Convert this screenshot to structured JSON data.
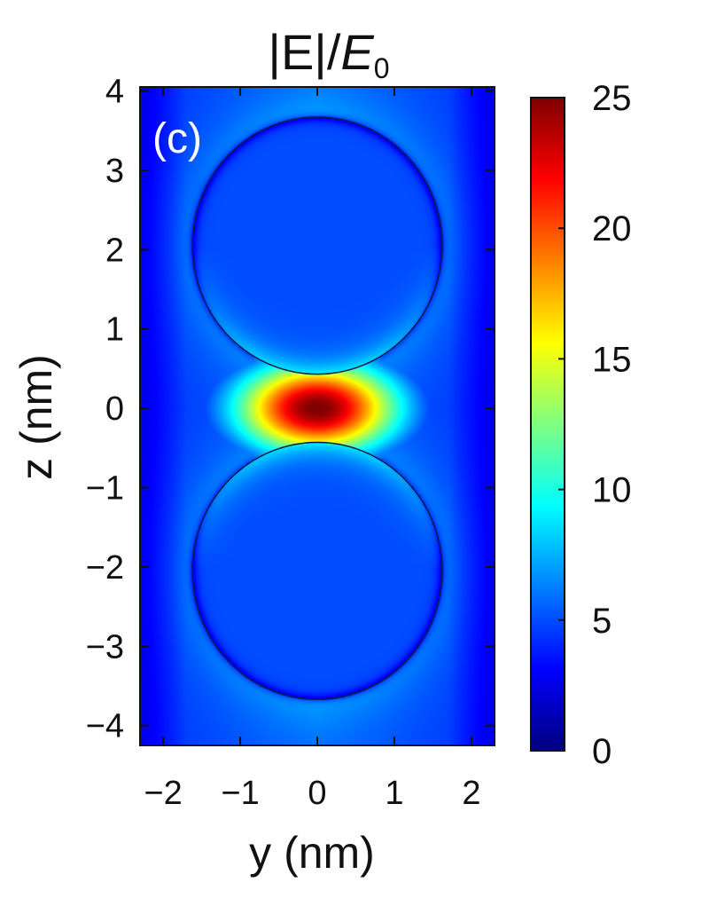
{
  "chart_data": {
    "type": "heatmap",
    "title_main": "|E|/",
    "title_italic": "E",
    "title_sub": "0",
    "panel_label": "(c)",
    "xlabel": "y (nm)",
    "ylabel": "z (nm)",
    "xlim": [
      -2.3,
      2.3
    ],
    "ylim": [
      -4.25,
      4.05
    ],
    "xticks": [
      -2,
      -1,
      0,
      1,
      2
    ],
    "xtick_labels": [
      "−2",
      "−1",
      "0",
      "1",
      "2"
    ],
    "yticks": [
      4,
      3,
      2,
      1,
      0,
      -1,
      -2,
      -3,
      -4
    ],
    "ytick_labels": [
      "4",
      "3",
      "2",
      "1",
      "0",
      "−1",
      "−2",
      "−3",
      "−4"
    ],
    "colorbar": {
      "range": [
        0,
        25
      ],
      "ticks": [
        25,
        20,
        15,
        10,
        5,
        0
      ],
      "tick_labels": [
        "25",
        "20",
        "15",
        "10",
        "5",
        "0"
      ],
      "colormap": "jet"
    },
    "spheres": [
      {
        "center_y": 0,
        "center_z": 2.05,
        "radius": 1.62
      },
      {
        "center_y": 0,
        "center_z": -2.05,
        "radius": 1.62
      }
    ],
    "field": {
      "gap_max": 25,
      "background": 4.5,
      "inside_sphere": 5,
      "far_edge": 2
    },
    "colors": {
      "jet_stops": [
        "#00007f",
        "#0000ff",
        "#007fff",
        "#00ffff",
        "#7fff7f",
        "#ffff00",
        "#ff7f00",
        "#ff0000",
        "#7f0000"
      ]
    }
  }
}
